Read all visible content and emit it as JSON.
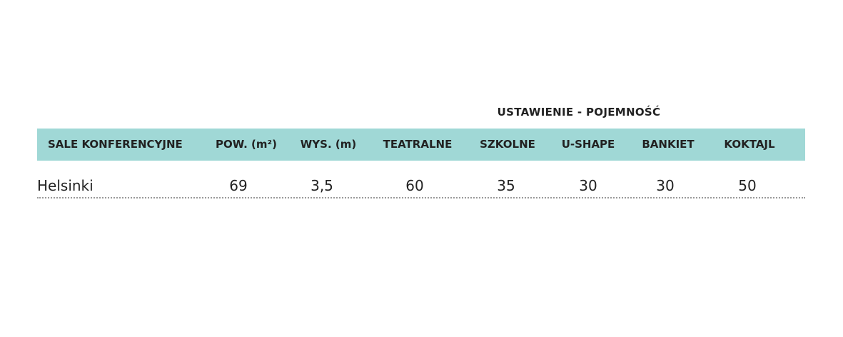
{
  "table": {
    "group_header": "USTAWIENIE - POJEMNOŚĆ",
    "header": [
      "SALE KONFERENCYJNE",
      "POW. (m²)",
      "WYS. (m)",
      "TEATRALNE",
      "SZKOLNE",
      "U-SHAPE",
      "BANKIET",
      "KOKTAJL"
    ],
    "rows": [
      [
        "Helsinki",
        "69",
        "3,5",
        "60",
        "35",
        "30",
        "30",
        "50"
      ]
    ]
  }
}
